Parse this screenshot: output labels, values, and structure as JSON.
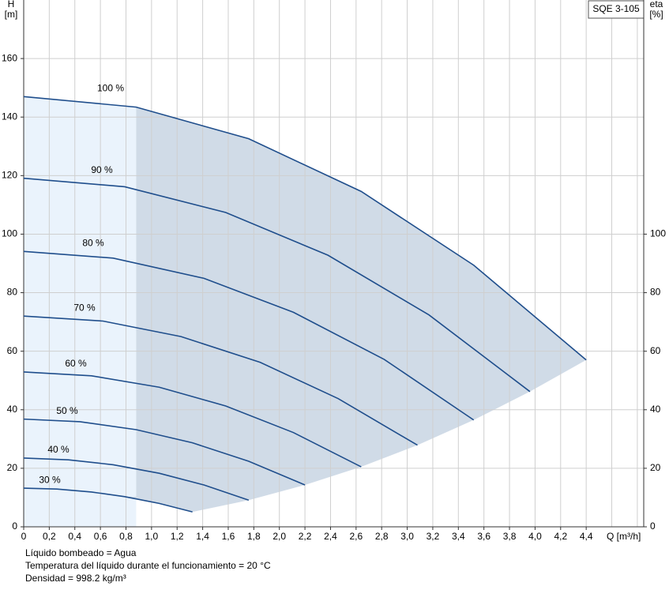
{
  "chart_data": {
    "type": "line",
    "badge": "SQE 3-105",
    "y_label": "H",
    "y_unit": "[m]",
    "y2_label": "eta",
    "y2_unit": "[%]",
    "x_label": "Q [m³/h]",
    "notes": [
      "Líquido bombeado = Agua",
      "Temperatura del líquido durante el funcionamiento = 20 °C",
      "Densidad = 998.2 kg/m³"
    ],
    "xlim": [
      0,
      4.85
    ],
    "ylim": [
      0,
      180
    ],
    "y2lim": [
      0,
      180
    ],
    "xticks": [
      0,
      {
        "value": 0.2,
        "label": "0,2"
      },
      {
        "value": 0.4,
        "label": "0,4"
      },
      {
        "value": 0.6,
        "label": "0,6"
      },
      {
        "value": 0.8,
        "label": "0,8"
      },
      {
        "value": 1.0,
        "label": "1,0"
      },
      {
        "value": 1.2,
        "label": "1,2"
      },
      {
        "value": 1.4,
        "label": "1,4"
      },
      {
        "value": 1.6,
        "label": "1,6"
      },
      {
        "value": 1.8,
        "label": "1,8"
      },
      {
        "value": 2.0,
        "label": "2,0"
      },
      {
        "value": 2.2,
        "label": "2,2"
      },
      {
        "value": 2.4,
        "label": "2,4"
      },
      {
        "value": 2.6,
        "label": "2,6"
      },
      {
        "value": 2.8,
        "label": "2,8"
      },
      {
        "value": 3.0,
        "label": "3,0"
      },
      {
        "value": 3.2,
        "label": "3,2"
      },
      {
        "value": 3.4,
        "label": "3,4"
      },
      {
        "value": 3.6,
        "label": "3,6"
      },
      {
        "value": 3.8,
        "label": "3,8"
      },
      {
        "value": 4.0,
        "label": "4,0"
      },
      {
        "value": 4.2,
        "label": "4,2"
      },
      {
        "value": 4.4,
        "label": "4,4"
      }
    ],
    "yticks": [
      0,
      20,
      40,
      60,
      80,
      100,
      120,
      140,
      160
    ],
    "y2ticks": [
      0,
      20,
      40,
      60,
      80,
      100
    ],
    "grid": true,
    "series": [
      {
        "name": "100 %",
        "color": "#1f4e8c",
        "x": [
          0,
          0.88,
          1.76,
          2.64,
          3.52,
          4.4
        ],
        "values": [
          147,
          143.4,
          132.6,
          114.6,
          89.4,
          57
        ]
      },
      {
        "name": "90 %",
        "color": "#1f4e8c",
        "x": [
          0,
          0.79,
          1.58,
          2.38,
          3.17,
          3.96
        ],
        "values": [
          119.1,
          116.2,
          107.4,
          92.8,
          72.4,
          46.2
        ]
      },
      {
        "name": "80 %",
        "color": "#1f4e8c",
        "x": [
          0,
          0.7,
          1.41,
          2.11,
          2.82,
          3.52
        ],
        "values": [
          94.1,
          91.8,
          84.9,
          73.3,
          57.2,
          36.5
        ]
      },
      {
        "name": "70 %",
        "color": "#1f4e8c",
        "x": [
          0,
          0.62,
          1.23,
          1.85,
          2.46,
          3.08
        ],
        "values": [
          72.0,
          70.3,
          65.0,
          56.2,
          43.8,
          27.9
        ]
      },
      {
        "name": "60 %",
        "color": "#1f4e8c",
        "x": [
          0,
          0.53,
          1.06,
          1.58,
          2.11,
          2.64
        ],
        "values": [
          52.9,
          51.6,
          47.7,
          41.3,
          32.2,
          20.5
        ]
      },
      {
        "name": "50 %",
        "color": "#1f4e8c",
        "x": [
          0,
          0.44,
          0.88,
          1.32,
          1.76,
          2.2
        ],
        "values": [
          36.8,
          35.9,
          33.2,
          28.7,
          22.4,
          14.3
        ]
      },
      {
        "name": "40 %",
        "color": "#1f4e8c",
        "x": [
          0,
          0.35,
          0.7,
          1.06,
          1.41,
          1.76
        ],
        "values": [
          23.5,
          22.9,
          21.2,
          18.3,
          14.3,
          9.1
        ]
      },
      {
        "name": "30 %",
        "color": "#1f4e8c",
        "x": [
          0,
          0.26,
          0.53,
          0.79,
          1.06,
          1.32
        ],
        "values": [
          13.2,
          12.9,
          11.9,
          10.3,
          8.0,
          5.1
        ]
      }
    ]
  }
}
